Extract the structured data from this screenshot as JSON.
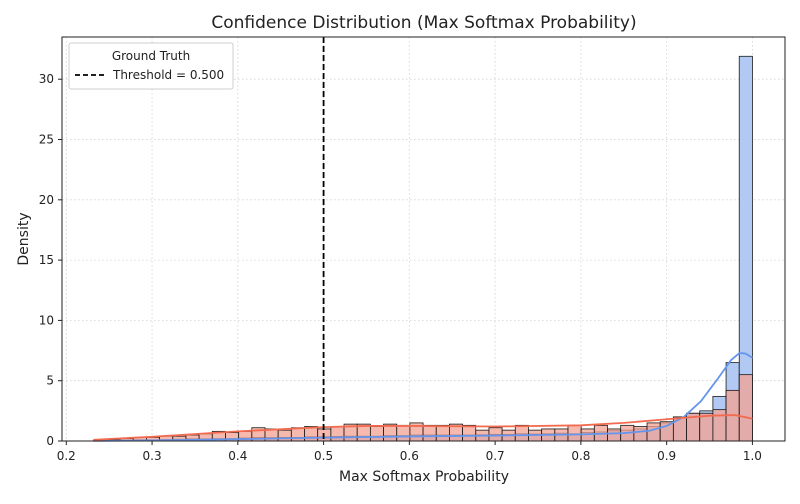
{
  "chart_data": {
    "type": "histogram",
    "title": "Confidence Distribution (Max Softmax Probability)",
    "xlabel": "Max Softmax Probability",
    "ylabel": "Density",
    "xlim": [
      0.195,
      1.038
    ],
    "ylim": [
      0,
      33.5
    ],
    "xticks": [
      "0.2",
      "0.3",
      "0.4",
      "0.5",
      "0.6",
      "0.7",
      "0.8",
      "0.9",
      "1.0"
    ],
    "yticks": [
      "0",
      "5",
      "10",
      "15",
      "20",
      "25",
      "30"
    ],
    "grid": true,
    "bins": {
      "start": 0.232,
      "width": 0.01536,
      "count": 50
    },
    "series": [
      {
        "color": "#6495ed",
        "fill": "#aec7f2",
        "density": [
          0.05,
          0.05,
          0.08,
          0.1,
          0.1,
          0.12,
          0.15,
          0.18,
          0.18,
          0.2,
          0.2,
          0.25,
          0.3,
          0.28,
          0.3,
          0.3,
          0.35,
          0.35,
          0.38,
          0.4,
          0.4,
          0.4,
          0.45,
          0.45,
          0.5,
          0.5,
          0.5,
          0.5,
          0.5,
          0.52,
          0.55,
          0.55,
          0.6,
          0.58,
          0.6,
          0.65,
          0.6,
          0.7,
          0.75,
          0.85,
          0.9,
          1.0,
          1.2,
          1.5,
          2.0,
          2.3,
          2.5,
          3.7,
          6.5,
          31.9
        ],
        "kde": [
          [
            0.232,
            0.01
          ],
          [
            0.3,
            0.05
          ],
          [
            0.4,
            0.15
          ],
          [
            0.5,
            0.28
          ],
          [
            0.6,
            0.38
          ],
          [
            0.7,
            0.45
          ],
          [
            0.8,
            0.55
          ],
          [
            0.85,
            0.65
          ],
          [
            0.88,
            0.85
          ],
          [
            0.9,
            1.25
          ],
          [
            0.92,
            2.0
          ],
          [
            0.94,
            3.3
          ],
          [
            0.96,
            5.2
          ],
          [
            0.975,
            6.7
          ],
          [
            0.985,
            7.3
          ],
          [
            0.992,
            7.25
          ],
          [
            1.0,
            6.9
          ]
        ]
      },
      {
        "color": "#f26b4f",
        "fill": "#f3a192",
        "density": [
          0.1,
          0.1,
          0.2,
          0.3,
          0.3,
          0.4,
          0.4,
          0.5,
          0.6,
          0.8,
          0.7,
          0.8,
          1.1,
          1.0,
          0.9,
          1.1,
          1.2,
          1.0,
          1.2,
          1.4,
          1.4,
          1.2,
          1.4,
          1.3,
          1.5,
          1.3,
          1.3,
          1.4,
          1.3,
          0.9,
          1.1,
          0.9,
          1.3,
          0.9,
          1.0,
          1.0,
          1.3,
          1.0,
          1.3,
          1.0,
          1.3,
          1.2,
          1.5,
          1.6,
          2.0,
          2.3,
          2.3,
          2.6,
          4.2,
          5.5
        ],
        "kde": [
          [
            0.232,
            0.1
          ],
          [
            0.3,
            0.35
          ],
          [
            0.4,
            0.8
          ],
          [
            0.5,
            1.15
          ],
          [
            0.55,
            1.25
          ],
          [
            0.6,
            1.25
          ],
          [
            0.7,
            1.2
          ],
          [
            0.8,
            1.3
          ],
          [
            0.85,
            1.5
          ],
          [
            0.9,
            1.8
          ],
          [
            0.95,
            2.1
          ],
          [
            0.98,
            2.15
          ],
          [
            1.0,
            1.85
          ]
        ]
      }
    ],
    "threshold": 0.5,
    "legend": {
      "title": "Ground Truth",
      "position": "top-left",
      "entries": [
        "Threshold = 0.500"
      ]
    }
  }
}
